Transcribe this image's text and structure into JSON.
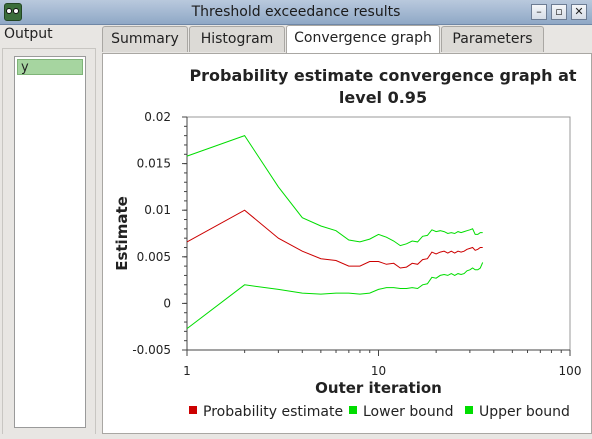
{
  "window": {
    "title": "Threshold exceedance results",
    "buttons": {
      "minimize": "–",
      "maximize": "▫",
      "close": "✕"
    }
  },
  "output_panel": {
    "label": "Output",
    "items": [
      "y"
    ]
  },
  "tabs": [
    {
      "label": "Summary",
      "active": false
    },
    {
      "label": "Histogram",
      "active": false
    },
    {
      "label": "Convergence graph",
      "active": true
    },
    {
      "label": "Parameters",
      "active": false
    }
  ],
  "colors": {
    "probability": "#cc0000",
    "bounds": "#00dd00"
  },
  "chart_data": {
    "type": "line",
    "title": "Probability estimate convergence graph at level 0.95",
    "title_lines": [
      "Probability estimate convergence graph at",
      "level 0.95"
    ],
    "xlabel": "Outer iteration",
    "ylabel": "Estimate",
    "xscale": "log",
    "xlim": [
      1,
      100
    ],
    "ylim": [
      -0.005,
      0.02
    ],
    "xticks": [
      1,
      10,
      100
    ],
    "xtick_labels": [
      "1",
      "10",
      "100"
    ],
    "yticks": [
      -0.005,
      0,
      0.005,
      0.01,
      0.015,
      0.02
    ],
    "ytick_labels": [
      "-0.005",
      "0",
      "0.005",
      "0.01",
      "0.015",
      "0.02"
    ],
    "grid": false,
    "legend_position": "bottom",
    "x": [
      1,
      2,
      3,
      4,
      5,
      6,
      7,
      8,
      9,
      10,
      11,
      12,
      13,
      14,
      15,
      16,
      17,
      18,
      19,
      20,
      21,
      22,
      23,
      24,
      25,
      26,
      27,
      28,
      29,
      30,
      31,
      32,
      33,
      34,
      35
    ],
    "series": [
      {
        "name": "Probability estimate",
        "color": "#cc0000",
        "values": [
          0.0066,
          0.01,
          0.007,
          0.0056,
          0.0048,
          0.0046,
          0.004,
          0.004,
          0.0045,
          0.0045,
          0.0042,
          0.0043,
          0.0038,
          0.0039,
          0.0043,
          0.0042,
          0.0047,
          0.0048,
          0.0055,
          0.0053,
          0.0055,
          0.0056,
          0.0054,
          0.0056,
          0.0054,
          0.0056,
          0.0055,
          0.0056,
          0.0058,
          0.0059,
          0.006,
          0.0057,
          0.0058,
          0.006,
          0.006
        ]
      },
      {
        "name": "Lower bound",
        "color": "#00dd00",
        "values": [
          -0.0027,
          0.002,
          0.0015,
          0.0011,
          0.001,
          0.0011,
          0.0011,
          0.001,
          0.0011,
          0.0015,
          0.0017,
          0.0017,
          0.0016,
          0.0016,
          0.0017,
          0.0016,
          0.002,
          0.0021,
          0.0028,
          0.0027,
          0.003,
          0.0031,
          0.003,
          0.0032,
          0.003,
          0.0032,
          0.0031,
          0.0032,
          0.0035,
          0.0036,
          0.0038,
          0.0036,
          0.0036,
          0.0038,
          0.0044
        ]
      },
      {
        "name": "Upper bound",
        "color": "#00dd00",
        "values": [
          0.0158,
          0.018,
          0.0125,
          0.0092,
          0.0083,
          0.0078,
          0.0068,
          0.0066,
          0.0069,
          0.0074,
          0.0071,
          0.0067,
          0.0062,
          0.0064,
          0.0067,
          0.0066,
          0.0072,
          0.0073,
          0.0079,
          0.0077,
          0.0078,
          0.0077,
          0.0075,
          0.0076,
          0.0075,
          0.0077,
          0.0076,
          0.0077,
          0.0078,
          0.0079,
          0.008,
          0.0074,
          0.0074,
          0.0076,
          0.0076
        ]
      }
    ]
  }
}
